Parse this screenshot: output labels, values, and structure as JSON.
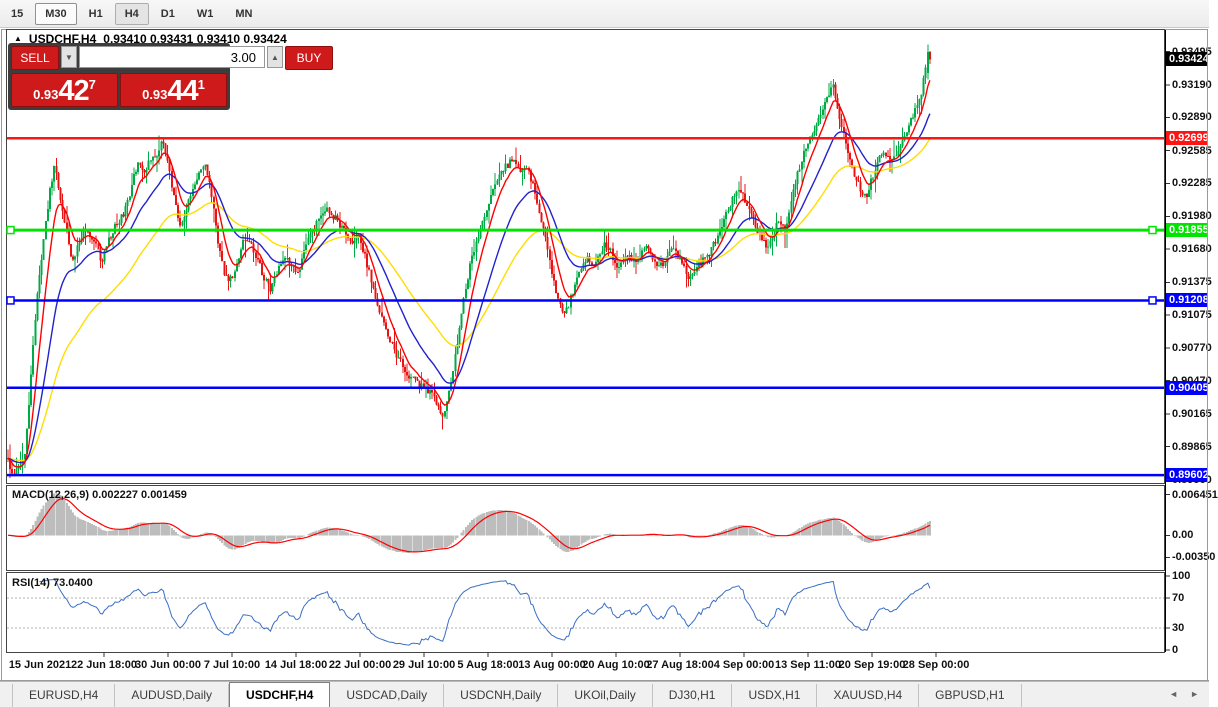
{
  "toolbar": {
    "timeframes": [
      {
        "label": "15",
        "state": "normal"
      },
      {
        "label": "M30",
        "state": "raised"
      },
      {
        "label": "H1",
        "state": "normal"
      },
      {
        "label": "H4",
        "state": "active"
      },
      {
        "label": "D1",
        "state": "normal"
      },
      {
        "label": "W1",
        "state": "normal"
      },
      {
        "label": "MN",
        "state": "normal"
      }
    ]
  },
  "chart_header": {
    "collapse_icon": "▲",
    "symbol_period": "USDCHF,H4",
    "ohlc_text": "0.93410 0.93431 0.93410 0.93424"
  },
  "one_click": {
    "sell_label": "SELL",
    "buy_label": "BUY",
    "volume": "3.00",
    "spin_down": "▼",
    "spin_up": "▲",
    "sell_price": {
      "prefix": "0.93",
      "big": "42",
      "sup": "7"
    },
    "buy_price": {
      "prefix": "0.93",
      "big": "44",
      "sup": "1"
    }
  },
  "tabs": {
    "items": [
      "EURUSD,H4",
      "AUDUSD,Daily",
      "USDCHF,H4",
      "USDCAD,Daily",
      "USDCNH,Daily",
      "UKOil,Daily",
      "DJ30,H1",
      "USDX,H1",
      "XAUUSD,H4",
      "GBPUSD,H1"
    ],
    "active_index": 2,
    "scroll_left": "◄",
    "scroll_right": "►"
  },
  "chart_data": {
    "type": "candlestick",
    "symbol": "USDCHF",
    "timeframe": "H4",
    "current_ohlc": {
      "open": 0.9341,
      "high": 0.93431,
      "low": 0.9341,
      "close": 0.93424
    },
    "current_price_badge": "0.93424",
    "y_range": [
      0.8953,
      0.93694
    ],
    "y_ticks": [
      "0.93495",
      "0.93190",
      "0.92890",
      "0.92585",
      "0.92285",
      "0.91980",
      "0.91680",
      "0.91375",
      "0.91075",
      "0.90770",
      "0.90470",
      "0.90165",
      "0.89865",
      "0.89560"
    ],
    "x_labels": [
      "15 Jun 2021",
      "22 Jun 18:00",
      "30 Jun 00:00",
      "7 Jul 10:00",
      "14 Jul 18:00",
      "22 Jul 00:00",
      "29 Jul 10:00",
      "5 Aug 18:00",
      "13 Aug 00:00",
      "20 Aug 10:00",
      "27 Aug 18:00",
      "4 Sep 00:00",
      "13 Sep 11:00",
      "20 Sep 19:00",
      "28 Sep 00:00"
    ],
    "colors": {
      "up": "#00aa44",
      "down": "#e81414",
      "ma_fast": "#ff0000",
      "ma_mid": "#2222cc",
      "ma_slow": "#ffdd00",
      "current_badge_bg": "#000000"
    },
    "hlines": [
      {
        "price": 0.92699,
        "label": "0.92699",
        "color": "#ff1414",
        "width": 2.5,
        "handles": false
      },
      {
        "price": 0.91855,
        "label": "0.91855",
        "color": "#00e400",
        "width": 3,
        "handles": true
      },
      {
        "price": 0.91208,
        "label": "0.91208",
        "color": "#0000ff",
        "width": 2.5,
        "handles": true
      },
      {
        "price": 0.90405,
        "label": "0.90405",
        "color": "#0000ff",
        "width": 2.5,
        "handles": false
      },
      {
        "price": 0.89602,
        "label": "0.89602",
        "color": "#0000ff",
        "width": 2.5,
        "handles": false
      }
    ],
    "moving_averages": [
      {
        "period": 8,
        "color": "#ff0000"
      },
      {
        "period": 24,
        "color": "#2222cc"
      },
      {
        "period": 55,
        "color": "#ffdd00"
      }
    ],
    "macd": {
      "label": "MACD(12,26,9) 0.002227 0.001459",
      "fast": 12,
      "slow": 26,
      "signal": 9,
      "value": 0.002227,
      "signal_value": 0.001459,
      "range": [
        -0.0055,
        0.0078
      ],
      "ticks": [
        {
          "value": 0.006451,
          "label": "0.006451"
        },
        {
          "value": 0,
          "label": "0.00"
        },
        {
          "value": -0.0035,
          "label": "-0.00350"
        }
      ],
      "hist_color": "#bdbdbd",
      "signal_color": "#ff0000"
    },
    "rsi": {
      "label": "RSI(14) 73.0400",
      "period": 14,
      "value": 73.04,
      "levels": [
        70,
        30
      ],
      "ticks": [
        {
          "value": 100,
          "label": "100"
        },
        {
          "value": 70,
          "label": "70"
        },
        {
          "value": 30,
          "label": "30"
        },
        {
          "value": 0,
          "label": "0"
        }
      ],
      "color": "#3a6fc4"
    },
    "bars": {
      "x_start": 8,
      "x_end": 932,
      "spacing": 2.1
    },
    "price_path": [
      [
        8,
        0.8976
      ],
      [
        12,
        0.896
      ],
      [
        18,
        0.8968
      ],
      [
        24,
        0.8975
      ],
      [
        28,
        0.901
      ],
      [
        33,
        0.908
      ],
      [
        38,
        0.913
      ],
      [
        44,
        0.918
      ],
      [
        50,
        0.9222
      ],
      [
        55,
        0.9245
      ],
      [
        60,
        0.9215
      ],
      [
        66,
        0.919
      ],
      [
        72,
        0.9158
      ],
      [
        78,
        0.917
      ],
      [
        84,
        0.9188
      ],
      [
        90,
        0.918
      ],
      [
        96,
        0.9172
      ],
      [
        102,
        0.9156
      ],
      [
        108,
        0.9175
      ],
      [
        114,
        0.9186
      ],
      [
        120,
        0.9196
      ],
      [
        126,
        0.9205
      ],
      [
        132,
        0.9227
      ],
      [
        138,
        0.9248
      ],
      [
        144,
        0.9238
      ],
      [
        150,
        0.925
      ],
      [
        157,
        0.9255
      ],
      [
        163,
        0.9268
      ],
      [
        169,
        0.9242
      ],
      [
        175,
        0.921
      ],
      [
        181,
        0.9186
      ],
      [
        187,
        0.9208
      ],
      [
        193,
        0.9222
      ],
      [
        199,
        0.9238
      ],
      [
        205,
        0.9245
      ],
      [
        211,
        0.9222
      ],
      [
        217,
        0.918
      ],
      [
        223,
        0.915
      ],
      [
        229,
        0.9136
      ],
      [
        236,
        0.9152
      ],
      [
        243,
        0.9174
      ],
      [
        250,
        0.9176
      ],
      [
        257,
        0.916
      ],
      [
        264,
        0.9142
      ],
      [
        271,
        0.9131
      ],
      [
        278,
        0.9148
      ],
      [
        285,
        0.916
      ],
      [
        292,
        0.9155
      ],
      [
        299,
        0.9146
      ],
      [
        306,
        0.9172
      ],
      [
        313,
        0.9185
      ],
      [
        320,
        0.9196
      ],
      [
        328,
        0.9205
      ],
      [
        336,
        0.9195
      ],
      [
        344,
        0.9185
      ],
      [
        352,
        0.917
      ],
      [
        358,
        0.9182
      ],
      [
        364,
        0.9165
      ],
      [
        371,
        0.914
      ],
      [
        378,
        0.9118
      ],
      [
        386,
        0.9094
      ],
      [
        394,
        0.9075
      ],
      [
        402,
        0.9062
      ],
      [
        410,
        0.905
      ],
      [
        418,
        0.9044
      ],
      [
        426,
        0.904
      ],
      [
        433,
        0.9034
      ],
      [
        439,
        0.9022
      ],
      [
        443,
        0.9012
      ],
      [
        448,
        0.903
      ],
      [
        454,
        0.906
      ],
      [
        460,
        0.91
      ],
      [
        466,
        0.9135
      ],
      [
        472,
        0.916
      ],
      [
        479,
        0.9182
      ],
      [
        486,
        0.9202
      ],
      [
        493,
        0.9225
      ],
      [
        500,
        0.924
      ],
      [
        508,
        0.9246
      ],
      [
        515,
        0.925
      ],
      [
        521,
        0.9236
      ],
      [
        527,
        0.9242
      ],
      [
        533,
        0.9228
      ],
      [
        539,
        0.9205
      ],
      [
        545,
        0.918
      ],
      [
        551,
        0.915
      ],
      [
        557,
        0.9125
      ],
      [
        563,
        0.9108
      ],
      [
        569,
        0.9118
      ],
      [
        575,
        0.9135
      ],
      [
        581,
        0.915
      ],
      [
        587,
        0.916
      ],
      [
        593,
        0.9148
      ],
      [
        599,
        0.9162
      ],
      [
        605,
        0.9174
      ],
      [
        611,
        0.9166
      ],
      [
        617,
        0.9148
      ],
      [
        623,
        0.9158
      ],
      [
        629,
        0.9162
      ],
      [
        635,
        0.9154
      ],
      [
        641,
        0.9164
      ],
      [
        647,
        0.917
      ],
      [
        653,
        0.9158
      ],
      [
        659,
        0.915
      ],
      [
        665,
        0.9158
      ],
      [
        671,
        0.9168
      ],
      [
        677,
        0.9164
      ],
      [
        683,
        0.9152
      ],
      [
        689,
        0.9142
      ],
      [
        695,
        0.9148
      ],
      [
        701,
        0.9156
      ],
      [
        707,
        0.9162
      ],
      [
        713,
        0.917
      ],
      [
        719,
        0.9182
      ],
      [
        725,
        0.9196
      ],
      [
        731,
        0.921
      ],
      [
        737,
        0.9222
      ],
      [
        743,
        0.9218
      ],
      [
        749,
        0.9205
      ],
      [
        755,
        0.919
      ],
      [
        761,
        0.9178
      ],
      [
        767,
        0.9168
      ],
      [
        773,
        0.918
      ],
      [
        779,
        0.9195
      ],
      [
        785,
        0.9185
      ],
      [
        791,
        0.9212
      ],
      [
        797,
        0.9235
      ],
      [
        803,
        0.9255
      ],
      [
        809,
        0.9268
      ],
      [
        815,
        0.928
      ],
      [
        821,
        0.9295
      ],
      [
        827,
        0.9308
      ],
      [
        833,
        0.932
      ],
      [
        837,
        0.93
      ],
      [
        841,
        0.9282
      ],
      [
        845,
        0.9268
      ],
      [
        850,
        0.925
      ],
      [
        855,
        0.9235
      ],
      [
        860,
        0.9224
      ],
      [
        866,
        0.9216
      ],
      [
        871,
        0.923
      ],
      [
        876,
        0.9243
      ],
      [
        881,
        0.9258
      ],
      [
        886,
        0.9252
      ],
      [
        891,
        0.9248
      ],
      [
        896,
        0.9256
      ],
      [
        901,
        0.9266
      ],
      [
        906,
        0.9276
      ],
      [
        911,
        0.9286
      ],
      [
        916,
        0.9296
      ],
      [
        921,
        0.931
      ],
      [
        925,
        0.933
      ],
      [
        929,
        0.9348
      ],
      [
        932,
        0.9342
      ]
    ]
  }
}
